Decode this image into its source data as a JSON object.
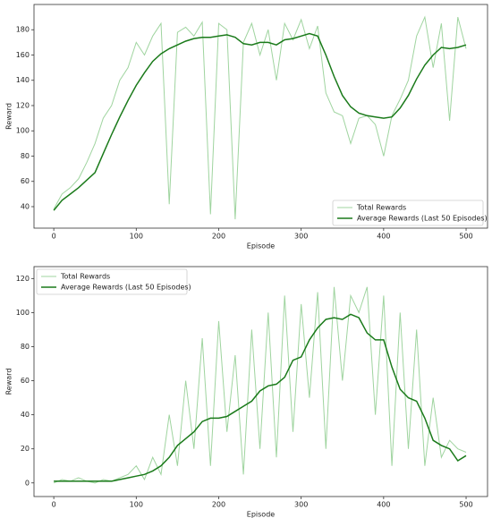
{
  "chart_data": [
    {
      "type": "line",
      "xlabel": "Episode",
      "ylabel": "Reward",
      "x": [
        0,
        10,
        20,
        30,
        40,
        50,
        60,
        70,
        80,
        90,
        100,
        110,
        120,
        130,
        140,
        150,
        160,
        170,
        180,
        190,
        200,
        210,
        220,
        230,
        240,
        250,
        260,
        270,
        280,
        290,
        300,
        310,
        320,
        330,
        340,
        350,
        360,
        370,
        380,
        390,
        400,
        410,
        420,
        430,
        440,
        450,
        460,
        470,
        480,
        490,
        500
      ],
      "series": [
        {
          "name": "Total Rewards",
          "color": "#9fd49f",
          "values": [
            38,
            50,
            55,
            62,
            75,
            90,
            110,
            120,
            140,
            150,
            170,
            160,
            175,
            185,
            42,
            178,
            182,
            175,
            186,
            34,
            185,
            180,
            30,
            170,
            185,
            160,
            180,
            140,
            185,
            172,
            188,
            165,
            183,
            130,
            115,
            112,
            90,
            110,
            112,
            105,
            80,
            112,
            125,
            140,
            175,
            190,
            150,
            185,
            108,
            190,
            165
          ]
        },
        {
          "name": "Average Rewards (Last 50 Episodes)",
          "color": "#1a7a1a",
          "values": [
            37,
            45,
            50,
            55,
            61,
            67,
            82,
            97,
            111,
            124,
            136,
            146,
            155,
            161,
            165,
            168,
            171,
            173,
            174,
            174,
            175,
            176,
            174,
            169,
            168,
            170,
            170,
            168,
            172,
            173,
            175,
            177,
            175,
            160,
            143,
            128,
            119,
            114,
            112,
            111,
            110,
            111,
            118,
            128,
            141,
            152,
            160,
            166,
            165,
            166,
            168
          ]
        }
      ],
      "xlim": [
        -24,
        526
      ],
      "ylim": [
        23,
        200
      ],
      "xticks": [
        0,
        100,
        200,
        300,
        400,
        500
      ],
      "yticks": [
        40,
        60,
        80,
        100,
        120,
        140,
        160,
        180
      ],
      "legend": "lower right"
    },
    {
      "type": "line",
      "xlabel": "Episode",
      "ylabel": "Reward",
      "x": [
        0,
        10,
        20,
        30,
        40,
        50,
        60,
        70,
        80,
        90,
        100,
        110,
        120,
        130,
        140,
        150,
        160,
        170,
        180,
        190,
        200,
        210,
        220,
        230,
        240,
        250,
        260,
        270,
        280,
        290,
        300,
        310,
        320,
        330,
        340,
        350,
        360,
        370,
        380,
        390,
        400,
        410,
        420,
        430,
        440,
        450,
        460,
        470,
        480,
        490,
        500
      ],
      "series": [
        {
          "name": "Total Rewards",
          "color": "#9fd49f",
          "values": [
            0,
            2,
            1,
            3,
            1,
            0,
            2,
            1,
            3,
            5,
            10,
            2,
            15,
            5,
            40,
            10,
            60,
            20,
            85,
            10,
            95,
            30,
            75,
            5,
            90,
            20,
            100,
            15,
            110,
            30,
            105,
            50,
            112,
            20,
            115,
            60,
            110,
            100,
            115,
            40,
            110,
            10,
            100,
            20,
            90,
            10,
            50,
            15,
            25,
            20,
            18
          ]
        },
        {
          "name": "Average Rewards (Last 50 Episodes)",
          "color": "#1a7a1a",
          "values": [
            1,
            1,
            1,
            1,
            1,
            1,
            1,
            1,
            2,
            3,
            4,
            5,
            7,
            10,
            15,
            22,
            26,
            30,
            36,
            38,
            38,
            39,
            42,
            45,
            48,
            54,
            57,
            58,
            62,
            72,
            74,
            84,
            91,
            96,
            97,
            96,
            99,
            97,
            88,
            84,
            84,
            68,
            55,
            50,
            48,
            38,
            25,
            22,
            20,
            13,
            16
          ]
        }
      ],
      "xlim": [
        -24,
        526
      ],
      "ylim": [
        -8,
        127
      ],
      "xticks": [
        0,
        100,
        200,
        300,
        400,
        500
      ],
      "yticks": [
        0,
        20,
        40,
        60,
        80,
        100,
        120
      ],
      "legend": "upper left"
    }
  ]
}
